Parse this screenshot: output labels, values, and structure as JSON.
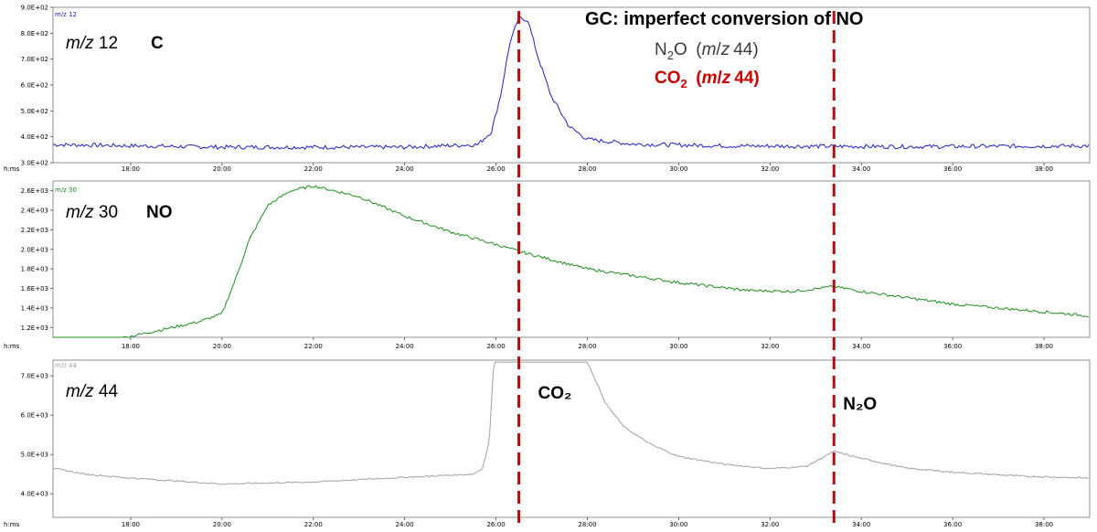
{
  "title": "GC: imperfect conversion of NO",
  "legend": {
    "n2o": {
      "pre": "N",
      "sub": "2",
      "post": "O (",
      "m": "m",
      "slash": "/",
      "z": "z",
      "num": "44)"
    },
    "co2": {
      "pre": "CO",
      "sub": "2",
      "post": " (",
      "m": "m",
      "slash": "/",
      "z": "z",
      "num": "44)"
    }
  },
  "colors": {
    "series_12": "#2020cc",
    "series_30": "#1e8f1e",
    "series_44": "#a0a0a0",
    "marker": "#b01010",
    "legend_co2": "#cc0000"
  },
  "chart_data": {
    "type": "line",
    "x_axis": {
      "label": "h:ms",
      "ticks": [
        "18:00",
        "20:00",
        "22:00",
        "24:00",
        "26:00",
        "28:00",
        "30:00",
        "32:00",
        "34:00",
        "36:00",
        "38:00"
      ],
      "tick_minutes": [
        18,
        20,
        22,
        24,
        26,
        28,
        30,
        32,
        34,
        36,
        38
      ],
      "range_minutes": [
        16.3,
        39.0
      ]
    },
    "markers_minutes": [
      26.5,
      33.4
    ],
    "panels": [
      {
        "series_tag": "m/z 12",
        "mz_prefix": "m/z",
        "mz_num": "12",
        "compound": "C",
        "color": "#2020cc",
        "ylim": [
          300,
          900
        ],
        "y_ticks": [
          300,
          400,
          500,
          600,
          700,
          800,
          900
        ],
        "y_tick_labels": [
          "3.0E+02",
          "4.0E+02",
          "5.0E+02",
          "6.0E+02",
          "7.0E+02",
          "8.0E+02",
          "9.0E+02"
        ],
        "points": [
          [
            16.3,
            370
          ],
          [
            20,
            360
          ],
          [
            24,
            360
          ],
          [
            25.6,
            370
          ],
          [
            25.9,
            420
          ],
          [
            26.1,
            560
          ],
          [
            26.3,
            760
          ],
          [
            26.5,
            860
          ],
          [
            26.7,
            850
          ],
          [
            26.9,
            720
          ],
          [
            27.2,
            560
          ],
          [
            27.6,
            440
          ],
          [
            28.0,
            390
          ],
          [
            29,
            372
          ],
          [
            31,
            365
          ],
          [
            35,
            362
          ],
          [
            39,
            365
          ]
        ],
        "noise": 8
      },
      {
        "series_tag": "m/z 30",
        "mz_prefix": "m/z",
        "mz_num": "30",
        "compound": "NO",
        "color": "#1e8f1e",
        "ylim": [
          1100,
          2700
        ],
        "y_ticks": [
          1200,
          1400,
          1600,
          1800,
          2000,
          2200,
          2400,
          2600
        ],
        "y_tick_labels": [
          "1.2E+03",
          "1.4E+03",
          "1.6E+03",
          "1.8E+03",
          "2.0E+03",
          "2.2E+03",
          "2.4E+03",
          "2.6E+03"
        ],
        "points": [
          [
            16.3,
            1070
          ],
          [
            17.8,
            1090
          ],
          [
            18.5,
            1160
          ],
          [
            19.5,
            1260
          ],
          [
            20.0,
            1340
          ],
          [
            20.3,
            1700
          ],
          [
            20.6,
            2100
          ],
          [
            21.0,
            2450
          ],
          [
            21.5,
            2600
          ],
          [
            22.0,
            2650
          ],
          [
            23.0,
            2540
          ],
          [
            24.0,
            2340
          ],
          [
            25.0,
            2180
          ],
          [
            26.0,
            2050
          ],
          [
            26.5,
            1980
          ],
          [
            28.0,
            1800
          ],
          [
            30.0,
            1660
          ],
          [
            31.5,
            1580
          ],
          [
            32.5,
            1570
          ],
          [
            33.4,
            1620
          ],
          [
            34.0,
            1570
          ],
          [
            36.0,
            1440
          ],
          [
            38.0,
            1360
          ],
          [
            39.0,
            1320
          ]
        ],
        "noise": 14
      },
      {
        "series_tag": "m/z 44",
        "mz_prefix": "m/z",
        "mz_num": "44",
        "compound": "",
        "color": "#a0a0a0",
        "ylim": [
          3400,
          7400
        ],
        "y_ticks": [
          4000,
          5000,
          6000,
          7000
        ],
        "y_tick_labels": [
          "4.0E+03",
          "5.0E+03",
          "6.0E+03",
          "7.0E+03"
        ],
        "points": [
          [
            16.3,
            4650
          ],
          [
            17.0,
            4500
          ],
          [
            18.0,
            4400
          ],
          [
            20.0,
            4250
          ],
          [
            22.0,
            4300
          ],
          [
            24.0,
            4420
          ],
          [
            25.5,
            4500
          ],
          [
            25.7,
            4650
          ],
          [
            25.85,
            5300
          ],
          [
            25.95,
            7350
          ],
          [
            28.0,
            7350
          ],
          [
            28.1,
            7100
          ],
          [
            28.4,
            6300
          ],
          [
            28.8,
            5700
          ],
          [
            29.4,
            5250
          ],
          [
            30.0,
            4950
          ],
          [
            31.0,
            4750
          ],
          [
            32.0,
            4640
          ],
          [
            32.8,
            4700
          ],
          [
            33.4,
            5080
          ],
          [
            34.0,
            4900
          ],
          [
            35.0,
            4650
          ],
          [
            36.0,
            4550
          ],
          [
            37.5,
            4450
          ],
          [
            39.0,
            4400
          ]
        ],
        "noise": 18
      }
    ],
    "annotations": [
      {
        "panel": 2,
        "sym": "CO",
        "sub": "₂",
        "x_minutes": 26.8
      },
      {
        "panel": 2,
        "sym": "N",
        "sub": "₂",
        "post": "O",
        "x_minutes": 33.6
      }
    ]
  }
}
